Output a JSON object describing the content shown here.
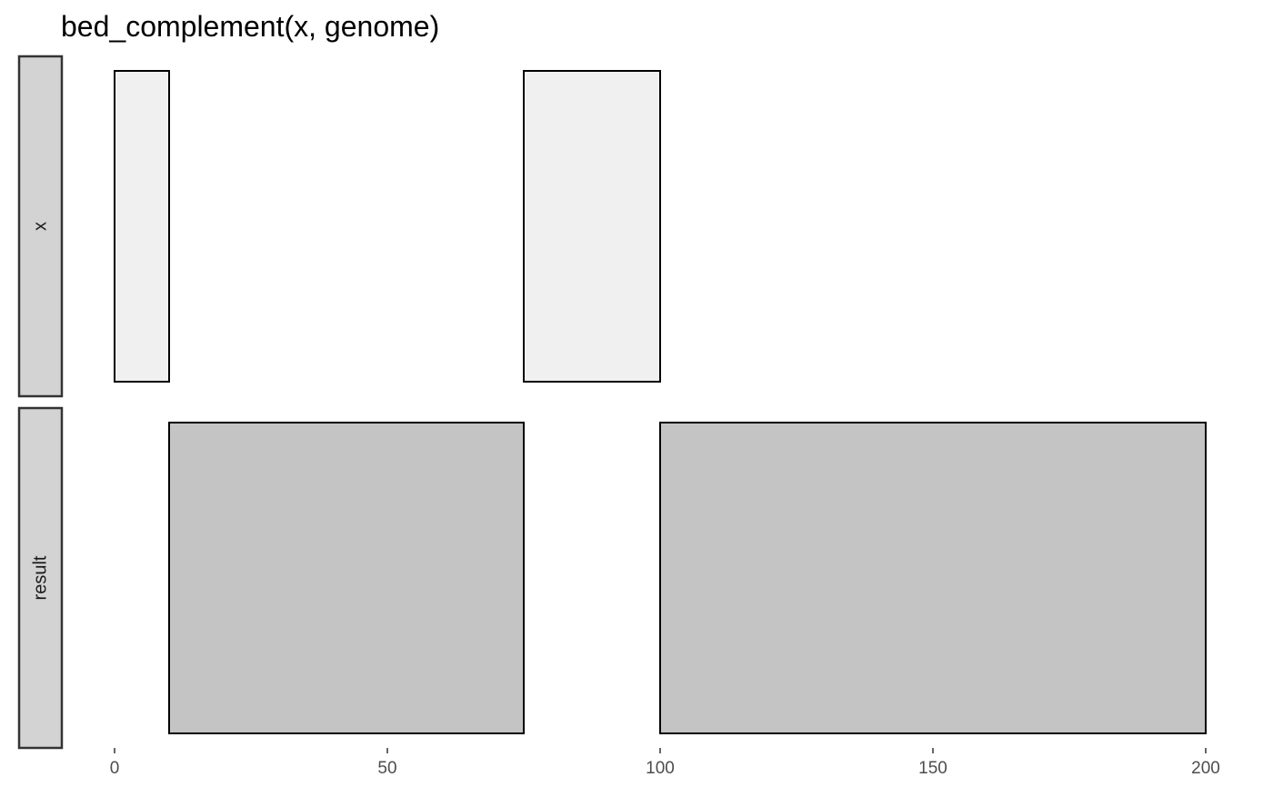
{
  "chart_data": {
    "type": "bar",
    "title": "bed_complement(x, genome)",
    "xlabel": "",
    "ylabel": "",
    "xlim": [
      0,
      200
    ],
    "x_ticks": [
      0,
      50,
      100,
      150,
      200
    ],
    "x_tick_labels": [
      "0",
      "50",
      "100",
      "150",
      "200"
    ],
    "grid": false,
    "facets": [
      {
        "label": "x",
        "fill": "#f0f0f0",
        "intervals": [
          {
            "start": 0,
            "end": 10
          },
          {
            "start": 75,
            "end": 100
          }
        ]
      },
      {
        "label": "result",
        "fill": "#c4c4c4",
        "intervals": [
          {
            "start": 10,
            "end": 75
          },
          {
            "start": 100,
            "end": 200
          }
        ]
      }
    ],
    "colors": {
      "strip_fill": "#d3d3d3",
      "outline": "#000000",
      "tick": "#333333"
    }
  }
}
